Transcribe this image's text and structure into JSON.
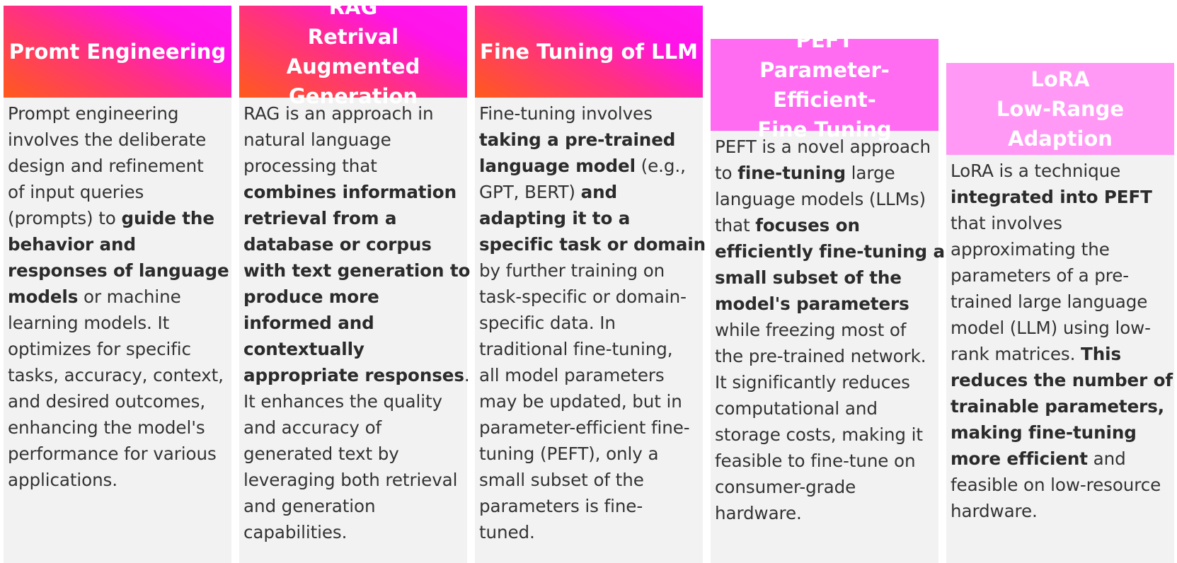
{
  "columns": [
    {
      "header": [
        "Promt Engineering"
      ],
      "body": [
        [
          {
            "t": "Prompt engineering"
          }
        ],
        [
          {
            "t": "involves the deliberate"
          }
        ],
        [
          {
            "t": "design and refinement"
          }
        ],
        [
          {
            "t": "of input queries"
          }
        ],
        [
          {
            "t": "(prompts) to "
          },
          {
            "t": "guide the",
            "b": true
          }
        ],
        [
          {
            "t": "behavior and",
            "b": true
          }
        ],
        [
          {
            "t": "responses of language",
            "b": true
          }
        ],
        [
          {
            "t": "models",
            "b": true
          },
          {
            "t": " or machine"
          }
        ],
        [
          {
            "t": "learning models. It"
          }
        ],
        [
          {
            "t": "optimizes for specific"
          }
        ],
        [
          {
            "t": "tasks, accuracy, context,"
          }
        ],
        [
          {
            "t": "and desired outcomes,"
          }
        ],
        [
          {
            "t": "enhancing the model's"
          }
        ],
        [
          {
            "t": "performance for various"
          }
        ],
        [
          {
            "t": "applications."
          }
        ]
      ]
    },
    {
      "header": [
        "RAG",
        "Retrival Augmented",
        "Generation"
      ],
      "body": [
        [
          {
            "t": "RAG is an approach in"
          }
        ],
        [
          {
            "t": "natural language"
          }
        ],
        [
          {
            "t": "processing that"
          }
        ],
        [
          {
            "t": "combines information",
            "b": true
          }
        ],
        [
          {
            "t": "retrieval from a",
            "b": true
          }
        ],
        [
          {
            "t": "database or corpus",
            "b": true
          }
        ],
        [
          {
            "t": "with text generation to",
            "b": true
          }
        ],
        [
          {
            "t": "produce more",
            "b": true
          }
        ],
        [
          {
            "t": "informed and",
            "b": true
          }
        ],
        [
          {
            "t": "contextually",
            "b": true
          }
        ],
        [
          {
            "t": "appropriate responses",
            "b": true
          },
          {
            "t": "."
          }
        ],
        [
          {
            "t": "It enhances the quality"
          }
        ],
        [
          {
            "t": "and accuracy of"
          }
        ],
        [
          {
            "t": "generated text by"
          }
        ],
        [
          {
            "t": "leveraging both retrieval"
          }
        ],
        [
          {
            "t": "and generation"
          }
        ],
        [
          {
            "t": "capabilities."
          }
        ]
      ]
    },
    {
      "header": [
        "Fine Tuning of LLM"
      ],
      "body": [
        [
          {
            "t": "Fine-tuning involves"
          }
        ],
        [
          {
            "t": "taking a pre-trained",
            "b": true
          }
        ],
        [
          {
            "t": "language model",
            "b": true
          },
          {
            "t": " (e.g.,"
          }
        ],
        [
          {
            "t": "GPT, BERT) "
          },
          {
            "t": "and",
            "b": true
          }
        ],
        [
          {
            "t": "adapting it to a",
            "b": true
          }
        ],
        [
          {
            "t": "specific task or domain",
            "b": true
          }
        ],
        [
          {
            "t": "by further training on"
          }
        ],
        [
          {
            "t": "task-specific or domain-"
          }
        ],
        [
          {
            "t": "specific data. In"
          }
        ],
        [
          {
            "t": "traditional fine-tuning,"
          }
        ],
        [
          {
            "t": "all model parameters"
          }
        ],
        [
          {
            "t": "may be updated, but in"
          }
        ],
        [
          {
            "t": "parameter-efficient fine-"
          }
        ],
        [
          {
            "t": "tuning (PEFT), only a"
          }
        ],
        [
          {
            "t": "small subset of the"
          }
        ],
        [
          {
            "t": "parameters is fine-"
          }
        ],
        [
          {
            "t": "tuned."
          }
        ]
      ]
    },
    {
      "header": [
        "PEFT",
        "Parameter-Efficient-",
        "Fine Tuning"
      ],
      "body": [
        [
          {
            "t": "PEFT is a novel approach"
          }
        ],
        [
          {
            "t": "to "
          },
          {
            "t": "fine-tuning",
            "b": true
          },
          {
            "t": " large"
          }
        ],
        [
          {
            "t": "language models (LLMs)"
          }
        ],
        [
          {
            "t": "that "
          },
          {
            "t": "focuses on",
            "b": true
          }
        ],
        [
          {
            "t": "efficiently fine-tuning a",
            "b": true
          }
        ],
        [
          {
            "t": "small subset of the",
            "b": true
          }
        ],
        [
          {
            "t": "model's parameters",
            "b": true
          }
        ],
        [
          {
            "t": "while freezing most of"
          }
        ],
        [
          {
            "t": "the pre-trained network."
          }
        ],
        [
          {
            "t": "It significantly reduces"
          }
        ],
        [
          {
            "t": "computational and"
          }
        ],
        [
          {
            "t": "storage costs, making it"
          }
        ],
        [
          {
            "t": "feasible to fine-tune on"
          }
        ],
        [
          {
            "t": "consumer-grade"
          }
        ],
        [
          {
            "t": "hardware."
          }
        ]
      ]
    },
    {
      "header": [
        "LoRA",
        "Low-Range",
        "Adaption"
      ],
      "body": [
        [
          {
            "t": "LoRA is a technique"
          }
        ],
        [
          {
            "t": "integrated into PEFT",
            "b": true
          }
        ],
        [
          {
            "t": "that involves"
          }
        ],
        [
          {
            "t": "approximating the"
          }
        ],
        [
          {
            "t": "parameters of a pre-"
          }
        ],
        [
          {
            "t": "trained large language"
          }
        ],
        [
          {
            "t": "model (LLM) using low-"
          }
        ],
        [
          {
            "t": "rank matrices. "
          },
          {
            "t": "This",
            "b": true
          }
        ],
        [
          {
            "t": "reduces the number of",
            "b": true
          }
        ],
        [
          {
            "t": "trainable parameters,",
            "b": true
          }
        ],
        [
          {
            "t": "making fine-tuning",
            "b": true
          }
        ],
        [
          {
            "t": "more efficient",
            "b": true
          },
          {
            "t": " and"
          }
        ],
        [
          {
            "t": "feasible on low-resource"
          }
        ],
        [
          {
            "t": "hardware."
          }
        ]
      ]
    }
  ]
}
